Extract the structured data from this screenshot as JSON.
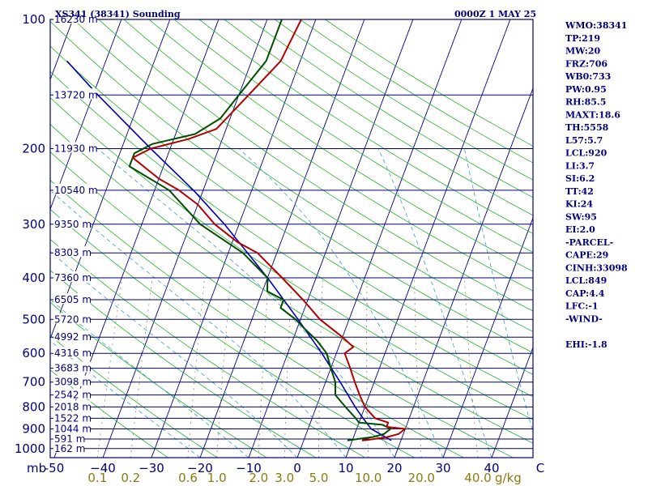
{
  "header": {
    "station": "XS341 (38341) Sounding",
    "time": "0000Z  1 MAY 25"
  },
  "chart_data": {
    "type": "skew-t log-p sounding",
    "y_unit": "mb",
    "x_unit": "°C",
    "mixing_unit": "g/kg",
    "pressure_ticks": [
      100,
      200,
      300,
      400,
      500,
      600,
      700,
      800,
      900,
      1000
    ],
    "height_labels": [
      {
        "p": 100,
        "label": "16230 m"
      },
      {
        "p": 150,
        "label": "13720 m"
      },
      {
        "p": 200,
        "label": "11930 m"
      },
      {
        "p": 250,
        "label": "10540 m"
      },
      {
        "p": 300,
        "label": "9350 m"
      },
      {
        "p": 350,
        "label": "8303 m"
      },
      {
        "p": 400,
        "label": "7360 m"
      },
      {
        "p": 450,
        "label": "6505 m"
      },
      {
        "p": 500,
        "label": "5720 m"
      },
      {
        "p": 550,
        "label": "4992 m"
      },
      {
        "p": 600,
        "label": "4316 m"
      },
      {
        "p": 650,
        "label": "3683 m"
      },
      {
        "p": 700,
        "label": "3098 m"
      },
      {
        "p": 750,
        "label": "2542 m"
      },
      {
        "p": 800,
        "label": "2018 m"
      },
      {
        "p": 850,
        "label": "1522 m"
      },
      {
        "p": 900,
        "label": "1044 m"
      },
      {
        "p": 950,
        "label": "591 m"
      },
      {
        "p": 1000,
        "label": "162 m"
      }
    ],
    "temp_ticks": [
      {
        "t": -50,
        "label": "-50"
      },
      {
        "t": -40,
        "label": "−40"
      },
      {
        "t": -30,
        "label": "−30"
      },
      {
        "t": -20,
        "label": "−20"
      },
      {
        "t": -10,
        "label": "−10"
      },
      {
        "t": 0,
        "label": "0"
      },
      {
        "t": 10,
        "label": "10"
      },
      {
        "t": 20,
        "label": "20"
      },
      {
        "t": 30,
        "label": "30"
      },
      {
        "t": 40,
        "label": "40"
      },
      {
        "t": 50,
        "label": "C"
      }
    ],
    "mixing_ticks": [
      {
        "w": 0.1,
        "label": "0.1"
      },
      {
        "w": 0.2,
        "label": "0.2"
      },
      {
        "w": 0.6,
        "label": "0.6"
      },
      {
        "w": 1.0,
        "label": "1.0"
      },
      {
        "w": 2.0,
        "label": "2.0"
      },
      {
        "w": 3.0,
        "label": "3.0"
      },
      {
        "w": 5.0,
        "label": "5.0"
      },
      {
        "w": 10.0,
        "label": "10.0"
      },
      {
        "w": 20.0,
        "label": "20.0"
      },
      {
        "w": 40.0,
        "label": "40.0"
      }
    ],
    "temperature": [
      {
        "p": 957,
        "t": 12
      },
      {
        "p": 955,
        "t": 13
      },
      {
        "p": 940,
        "t": 17
      },
      {
        "p": 925,
        "t": 19
      },
      {
        "p": 900,
        "t": 20
      },
      {
        "p": 890,
        "t": 16
      },
      {
        "p": 870,
        "t": 16
      },
      {
        "p": 850,
        "t": 13
      },
      {
        "p": 800,
        "t": 10
      },
      {
        "p": 750,
        "t": 8
      },
      {
        "p": 700,
        "t": 6
      },
      {
        "p": 650,
        "t": 4
      },
      {
        "p": 600,
        "t": 1.7
      },
      {
        "p": 580,
        "t": 3
      },
      {
        "p": 550,
        "t": 0
      },
      {
        "p": 500,
        "t": -6
      },
      {
        "p": 450,
        "t": -11
      },
      {
        "p": 400,
        "t": -17
      },
      {
        "p": 350,
        "t": -24
      },
      {
        "p": 330,
        "t": -29
      },
      {
        "p": 300,
        "t": -35
      },
      {
        "p": 270,
        "t": -40
      },
      {
        "p": 250,
        "t": -45
      },
      {
        "p": 235,
        "t": -50
      },
      {
        "p": 210,
        "t": -57
      },
      {
        "p": 200,
        "t": -54
      },
      {
        "p": 190,
        "t": -47
      },
      {
        "p": 180,
        "t": -42
      },
      {
        "p": 150,
        "t": -38
      },
      {
        "p": 125,
        "t": -34
      },
      {
        "p": 100,
        "t": -33
      }
    ],
    "dewpoint": [
      {
        "p": 957,
        "t": 9
      },
      {
        "p": 950,
        "t": 11
      },
      {
        "p": 940,
        "t": 14
      },
      {
        "p": 925,
        "t": 16
      },
      {
        "p": 900,
        "t": 17
      },
      {
        "p": 880,
        "t": 15
      },
      {
        "p": 870,
        "t": 10
      },
      {
        "p": 850,
        "t": 9
      },
      {
        "p": 800,
        "t": 6
      },
      {
        "p": 750,
        "t": 3
      },
      {
        "p": 700,
        "t": 2
      },
      {
        "p": 650,
        "t": 0
      },
      {
        "p": 600,
        "t": -2
      },
      {
        "p": 560,
        "t": -5
      },
      {
        "p": 520,
        "t": -9
      },
      {
        "p": 500,
        "t": -11
      },
      {
        "p": 470,
        "t": -15
      },
      {
        "p": 450,
        "t": -15
      },
      {
        "p": 430,
        "t": -19
      },
      {
        "p": 400,
        "t": -20
      },
      {
        "p": 350,
        "t": -27
      },
      {
        "p": 300,
        "t": -38
      },
      {
        "p": 250,
        "t": -47
      },
      {
        "p": 220,
        "t": -57
      },
      {
        "p": 205,
        "t": -57
      },
      {
        "p": 195,
        "t": -54
      },
      {
        "p": 185,
        "t": -46
      },
      {
        "p": 170,
        "t": -42
      },
      {
        "p": 150,
        "t": -40
      },
      {
        "p": 125,
        "t": -37
      },
      {
        "p": 100,
        "t": -37
      }
    ],
    "parcel": [
      {
        "p": 957,
        "t": 18
      },
      {
        "p": 900,
        "t": 13
      },
      {
        "p": 850,
        "t": 10.5
      },
      {
        "p": 800,
        "t": 8
      },
      {
        "p": 700,
        "t": 3
      },
      {
        "p": 600,
        "t": -3
      },
      {
        "p": 500,
        "t": -10.5
      },
      {
        "p": 400,
        "t": -20
      },
      {
        "p": 300,
        "t": -33
      },
      {
        "p": 250,
        "t": -42
      },
      {
        "p": 200,
        "t": -54
      },
      {
        "p": 150,
        "t": -69
      },
      {
        "p": 125,
        "t": -78
      }
    ],
    "indices": [
      "WMO:38341",
      "TP:219",
      "MW:20",
      "FRZ:706",
      "WB0:733",
      "PW:0.95",
      "RH:85.5",
      "MAXT:18.6",
      "TH:5558",
      "L57:5.7",
      "LCL:920",
      "LI:3.7",
      "SI:6.2",
      "TT:42",
      "KI:24",
      "SW:95",
      "EI:2.0",
      "-PARCEL-",
      "CAPE:29",
      "CINH:33098",
      "LCL:849",
      "CAP:4.4",
      "LFC:-1",
      "-WIND-",
      "",
      "EHI:-1.8"
    ],
    "colors": {
      "frame": "#00007a",
      "isobar": "#00007a",
      "isotherm": "#00007a",
      "dry_adiabat": "#28b428",
      "moist_adiabat": "#3a9ad9",
      "mixing_ratio": "#9b8a48",
      "temperature": "#b40000",
      "dewpoint": "#004d00",
      "parcel": "#0000b4"
    }
  }
}
